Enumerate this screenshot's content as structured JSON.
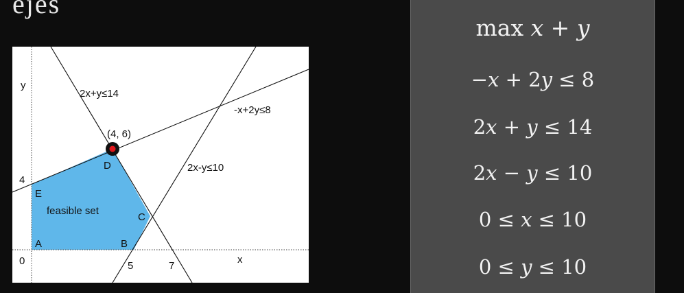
{
  "top_title": "ejes",
  "plot": {
    "axis_y_label": "y",
    "axis_x_label": "x",
    "tick_y_4": "4",
    "tick_origin": "0",
    "tick_x_5": "5",
    "tick_x_7": "7",
    "constraint_label_1": "2x+y≤14",
    "constraint_label_2": "-x+2y≤8",
    "constraint_label_3": "2x-y≤10",
    "optimum_label": "(4, 6)",
    "region_label": "feasible set",
    "vertex_a": "A",
    "vertex_b": "B",
    "vertex_c": "C",
    "vertex_d": "D",
    "vertex_e": "E",
    "feasible_fill": "#5fb7ea",
    "optimum_color": "#e0161b"
  },
  "formulation": {
    "objective": "max 𝑥 + 𝑦",
    "constraint_1": "−𝑥 + 2𝑦 ≤ 8",
    "constraint_2": "2𝑥 + 𝑦 ≤ 14",
    "constraint_3": "2𝑥 − 𝑦 ≤ 10",
    "bound_x": "0 ≤ 𝑥 ≤ 10",
    "bound_y": "0 ≤ 𝑦 ≤ 10"
  }
}
